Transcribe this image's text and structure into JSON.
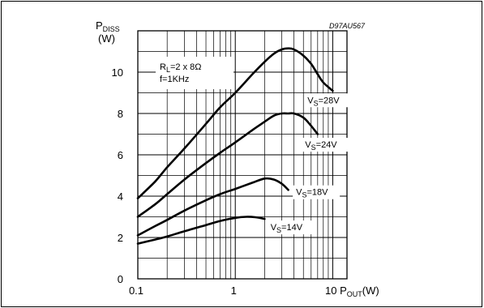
{
  "chart_data": {
    "type": "line",
    "code": "D97AU567",
    "ylabel": {
      "main": "P",
      "sub": "DISS",
      "unit": "(W)"
    },
    "xlabel": {
      "prefix": "10 ",
      "main": "P",
      "sub": "OUT",
      "unit": "(W)"
    },
    "x_scale": "log",
    "xlim": [
      0.1,
      14
    ],
    "ylim": [
      0,
      12
    ],
    "x_ticks": [
      {
        "value": 0.1,
        "label": "0.1"
      },
      {
        "value": 1,
        "label": "1"
      }
    ],
    "y_ticks": [
      {
        "value": 0,
        "label": "0"
      },
      {
        "value": 2,
        "label": "2"
      },
      {
        "value": 4,
        "label": "4"
      },
      {
        "value": 6,
        "label": "6"
      },
      {
        "value": 8,
        "label": "8"
      },
      {
        "value": 10,
        "label": "10"
      }
    ],
    "grid": true,
    "conditions": {
      "line1": {
        "main": "R",
        "sub": "L",
        "rest": "=2 x 8Ω"
      },
      "line2": "f=1KHz"
    },
    "series": [
      {
        "label": {
          "main": "V",
          "sub": "S",
          "rest": "=28V"
        },
        "x": [
          0.1,
          0.15,
          0.2,
          0.3,
          0.5,
          0.7,
          1.0,
          1.5,
          2.0,
          2.5,
          3.0,
          3.5,
          4.0,
          5.0,
          6.0,
          7.0,
          8.0,
          10.0
        ],
        "y": [
          3.9,
          4.7,
          5.4,
          6.3,
          7.5,
          8.3,
          9.0,
          9.9,
          10.5,
          10.9,
          11.1,
          11.15,
          11.1,
          10.8,
          10.4,
          9.9,
          9.5,
          9.1
        ]
      },
      {
        "label": {
          "main": "V",
          "sub": "S",
          "rest": "=24V"
        },
        "x": [
          0.1,
          0.15,
          0.2,
          0.3,
          0.5,
          0.7,
          1.0,
          1.5,
          2.0,
          2.5,
          3.0,
          3.5,
          4.0,
          5.0,
          6.0,
          7.0
        ],
        "y": [
          3.0,
          3.6,
          4.1,
          4.8,
          5.6,
          6.1,
          6.6,
          7.2,
          7.6,
          7.9,
          8.0,
          8.0,
          8.0,
          7.8,
          7.4,
          7.0
        ]
      },
      {
        "label": {
          "main": "V",
          "sub": "S",
          "rest": "=18V"
        },
        "x": [
          0.1,
          0.15,
          0.2,
          0.3,
          0.5,
          0.7,
          1.0,
          1.5,
          2.0,
          2.5,
          3.0,
          3.5
        ],
        "y": [
          2.1,
          2.55,
          2.85,
          3.3,
          3.8,
          4.1,
          4.35,
          4.65,
          4.85,
          4.8,
          4.6,
          4.3
        ]
      },
      {
        "label": {
          "main": "V",
          "sub": "S",
          "rest": "=14V"
        },
        "x": [
          0.1,
          0.15,
          0.2,
          0.3,
          0.5,
          0.7,
          1.0,
          1.3,
          1.6,
          2.0
        ],
        "y": [
          1.7,
          1.9,
          2.05,
          2.3,
          2.6,
          2.8,
          2.95,
          3.0,
          2.98,
          2.9
        ]
      }
    ],
    "label_positions_data": [
      {
        "x": 5.5,
        "y": 8.5
      },
      {
        "x": 5.2,
        "y": 6.35
      },
      {
        "x": 4.2,
        "y": 4.05
      },
      {
        "x": 2.3,
        "y": 2.35
      }
    ]
  }
}
